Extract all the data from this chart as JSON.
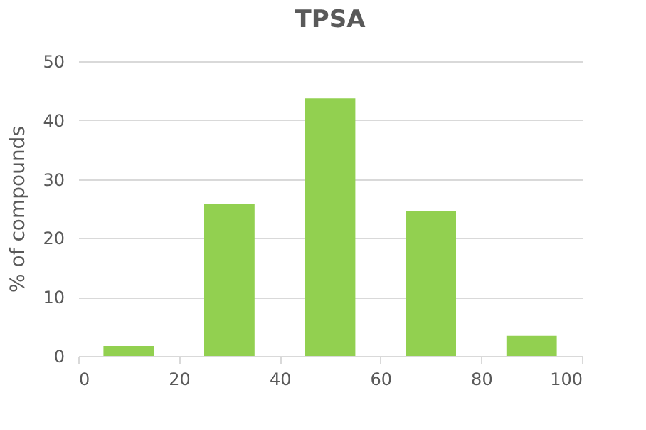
{
  "chart_data": {
    "type": "bar",
    "title": "TPSA",
    "ylabel": "% of compounds",
    "x": [
      10,
      30,
      50,
      70,
      90
    ],
    "series": [
      {
        "color": "#92d050",
        "values": [
          1.7,
          25.8,
          43.7,
          24.6,
          3.4
        ]
      }
    ],
    "xlim": [
      0,
      100
    ],
    "xticks": [
      0,
      20,
      40,
      60,
      80,
      100
    ],
    "ylim": [
      0,
      50
    ],
    "yticks": [
      0,
      10,
      20,
      30,
      40,
      50
    ],
    "grid": "y"
  }
}
